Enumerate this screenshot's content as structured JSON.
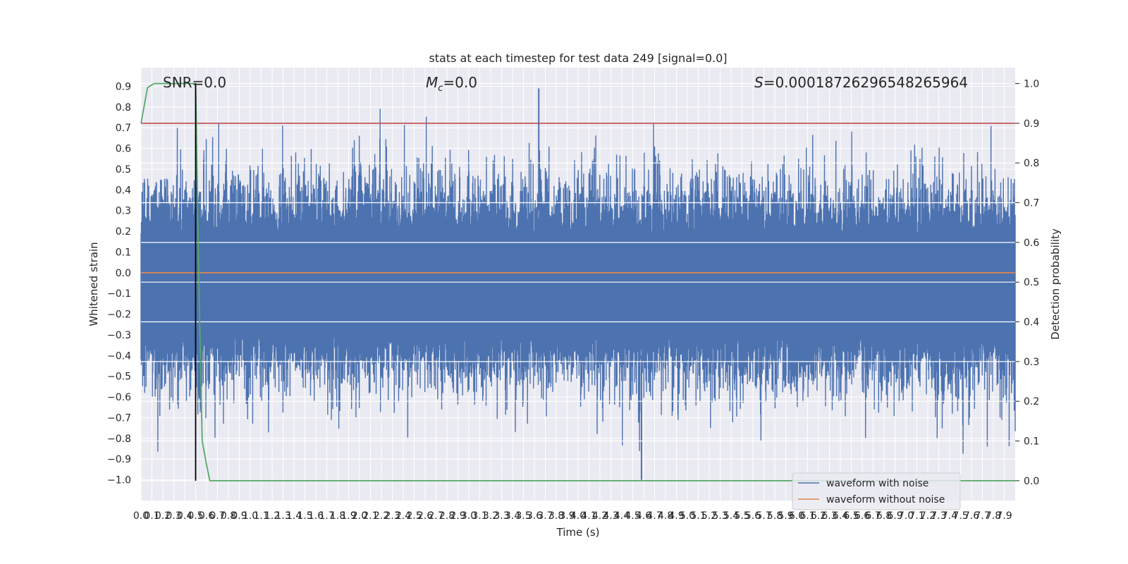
{
  "chart_data": {
    "type": "line",
    "title": "stats at each timestep for test data 249 [signal=0.0]",
    "xlabel": "Time (s)",
    "ylabel": "Whitened strain",
    "y2label": "Detection probability",
    "xlim": [
      0.0,
      8.0
    ],
    "ylim": [
      -1.1,
      0.99
    ],
    "y2lim": [
      -0.05,
      1.04
    ],
    "grid": true,
    "x_ticks": [
      "0.0",
      "0.1",
      "0.2",
      "0.3",
      "0.4",
      "0.5",
      "0.6",
      "0.7",
      "0.8",
      "0.9",
      "1.0",
      "1.1",
      "1.2",
      "1.3",
      "1.4",
      "1.5",
      "1.6",
      "1.7",
      "1.8",
      "1.9",
      "2.0",
      "2.1",
      "2.2",
      "2.3",
      "2.4",
      "2.5",
      "2.6",
      "2.7",
      "2.8",
      "2.9",
      "3.0",
      "3.1",
      "3.2",
      "3.3",
      "3.4",
      "3.5",
      "3.6",
      "3.7",
      "3.8",
      "3.9",
      "4.0",
      "4.1",
      "4.2",
      "4.3",
      "4.4",
      "4.5",
      "4.6",
      "4.7",
      "4.8",
      "4.9",
      "5.0",
      "5.1",
      "5.2",
      "5.3",
      "5.4",
      "5.5",
      "5.6",
      "5.7",
      "5.8",
      "5.9",
      "6.0",
      "6.1",
      "6.2",
      "6.3",
      "6.4",
      "6.5",
      "6.6",
      "6.7",
      "6.8",
      "6.9",
      "7.0",
      "7.1",
      "7.2",
      "7.3",
      "7.4",
      "7.5",
      "7.6",
      "7.7",
      "7.8",
      "7.9"
    ],
    "y_ticks": [
      "0.9",
      "0.8",
      "0.7",
      "0.6",
      "0.5",
      "0.4",
      "0.3",
      "0.2",
      "0.1",
      "0.0",
      "−0.1",
      "−0.2",
      "−0.3",
      "−0.4",
      "−0.5",
      "−0.6",
      "−0.7",
      "−0.8",
      "−0.9",
      "−1.0"
    ],
    "y2_ticks": [
      "1.0",
      "0.9",
      "0.8",
      "0.7",
      "0.6",
      "0.5",
      "0.4",
      "0.3",
      "0.2",
      "0.1",
      "0.0"
    ],
    "annotations": {
      "snr": "SNR=0.0",
      "mc_symbol": "M",
      "mc_sub": "c",
      "mc_value": "=0.0",
      "s_symbol": "S",
      "s_value": "=0.00018726296548265964"
    },
    "threshold": {
      "axis": "right",
      "value": 0.9,
      "color": "#c44e52"
    },
    "marker_time": 0.5,
    "legend": {
      "position": "lower-right",
      "entries": [
        "waveform with noise",
        "waveform without noise"
      ]
    },
    "series": [
      {
        "name": "waveform with noise",
        "axis": "left",
        "color": "#4c72b0",
        "kind": "noise",
        "x_range": [
          0.0,
          8.0
        ],
        "y_range": [
          -1.0,
          0.89
        ]
      },
      {
        "name": "waveform without noise",
        "axis": "left",
        "color": "#dd8452",
        "x": [
          0.0,
          8.0
        ],
        "y": [
          0.0,
          0.0
        ]
      },
      {
        "name": "",
        "axis": "right",
        "color": "#55a868",
        "x": [
          0.0,
          0.06,
          0.12,
          0.2,
          0.3,
          0.4,
          0.5,
          0.53,
          0.56,
          0.6,
          0.63,
          8.0
        ],
        "y": [
          0.9,
          0.99,
          1.0,
          1.0,
          1.0,
          1.0,
          1.0,
          0.5,
          0.1,
          0.04,
          0.0,
          0.0
        ]
      }
    ],
    "colors": {
      "background": "#eaeaf2",
      "grid": "#ffffff",
      "marker": "#000000"
    }
  }
}
